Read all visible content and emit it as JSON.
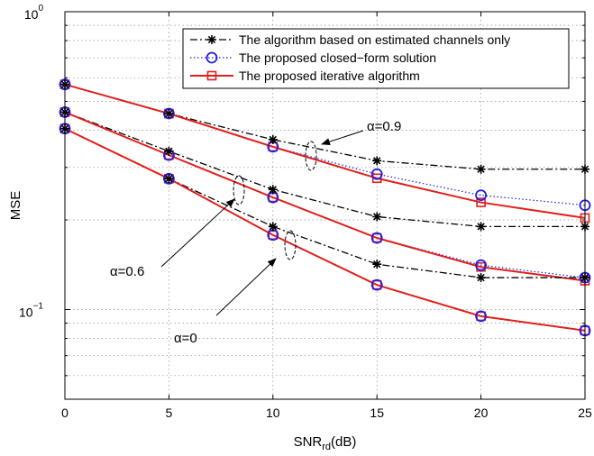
{
  "chart_data": {
    "type": "line",
    "xlabel": "SNR",
    "xlabel_sub": "rd",
    "xlabel_suffix": "(dB)",
    "ylabel": "MSE",
    "x_scale": "linear",
    "y_scale": "log",
    "xlim": [
      0,
      25
    ],
    "ylim": [
      0.05,
      1
    ],
    "x_ticks": [
      0,
      5,
      10,
      15,
      20,
      25
    ],
    "y_ticks": [
      {
        "value": 1,
        "base": "10",
        "exp": "0"
      },
      {
        "value": 0.1,
        "base": "10",
        "exp": "−1"
      }
    ],
    "grid": true,
    "legend_position": "top-right",
    "legend": [
      {
        "label": "The algorithm based on estimated channels only",
        "color": "#000000",
        "style": "dashdot",
        "marker": "asterisk"
      },
      {
        "label": "The proposed closed−form solution",
        "color": "#1f1fe6",
        "style": "dotted",
        "marker": "circle"
      },
      {
        "label": "The proposed iterative algorithm",
        "color": "#e0201c",
        "style": "solid",
        "marker": "square"
      }
    ],
    "x": [
      0,
      5,
      10,
      15,
      20,
      25
    ],
    "groups": [
      {
        "alpha": "α=0.9",
        "series": [
          {
            "legend_index": 0,
            "values": [
              0.57,
              0.455,
              0.372,
              0.316,
              0.296,
              0.296
            ]
          },
          {
            "legend_index": 1,
            "values": [
              0.57,
              0.455,
              0.352,
              0.285,
              0.242,
              0.224
            ]
          },
          {
            "legend_index": 2,
            "values": [
              0.57,
              0.455,
              0.352,
              0.276,
              0.229,
              0.203
            ]
          }
        ]
      },
      {
        "alpha": "α=0.6",
        "series": [
          {
            "legend_index": 0,
            "values": [
              0.46,
              0.34,
              0.253,
              0.205,
              0.19,
              0.19
            ]
          },
          {
            "legend_index": 1,
            "values": [
              0.46,
              0.33,
              0.238,
              0.174,
              0.141,
              0.128
            ]
          },
          {
            "legend_index": 2,
            "values": [
              0.46,
              0.33,
              0.238,
              0.174,
              0.139,
              0.125
            ]
          }
        ]
      },
      {
        "alpha": "α=0",
        "series": [
          {
            "legend_index": 0,
            "values": [
              0.405,
              0.275,
              0.19,
              0.142,
              0.128,
              0.128
            ]
          },
          {
            "legend_index": 1,
            "values": [
              0.405,
              0.275,
              0.178,
              0.121,
              0.095,
              0.085
            ]
          },
          {
            "legend_index": 2,
            "values": [
              0.405,
              0.275,
              0.178,
              0.121,
              0.095,
              0.085
            ]
          }
        ]
      }
    ],
    "annotations": [
      {
        "text": "α=0.9",
        "group": 0
      },
      {
        "text": "α=0.6",
        "group": 1
      },
      {
        "text": "α=0",
        "group": 2
      }
    ]
  }
}
